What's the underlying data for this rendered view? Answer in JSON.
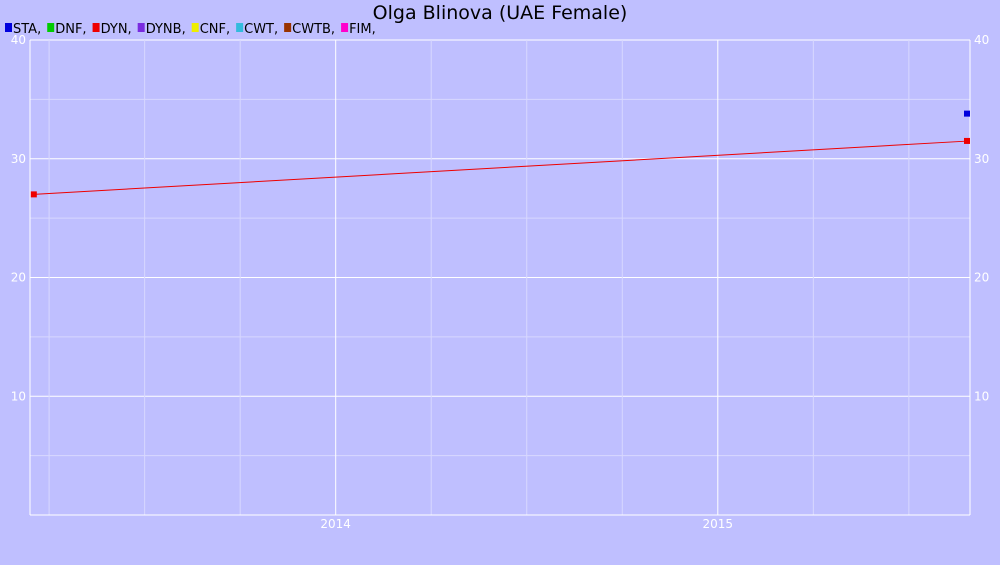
{
  "chart_data": {
    "type": "line",
    "title": "Olga Blinova (UAE Female)",
    "xlabel": "",
    "ylabel": "",
    "xlim": [
      2013.2,
      2015.66
    ],
    "ylim": [
      0,
      40
    ],
    "x_ticks": [
      2014,
      2015
    ],
    "x_tick_labels": [
      "2014",
      "2015"
    ],
    "y_ticks": [
      10,
      20,
      30,
      40
    ],
    "y_tick_labels": [
      "10",
      "20",
      "30",
      "40"
    ],
    "grid": true,
    "legend_position": "top-left",
    "legend": [
      {
        "label": "STA,",
        "color": "#0000dd"
      },
      {
        "label": "DNF,",
        "color": "#00cc00"
      },
      {
        "label": "DYN,",
        "color": "#ee0000"
      },
      {
        "label": "DYNB,",
        "color": "#7a2be0"
      },
      {
        "label": "CNF,",
        "color": "#eeee00"
      },
      {
        "label": "CWT,",
        "color": "#33bbdd"
      },
      {
        "label": "CWTB,",
        "color": "#993300"
      },
      {
        "label": "FIM,",
        "color": "#ff00cc"
      }
    ],
    "series": [
      {
        "name": "STA",
        "color": "#0000dd",
        "line": false,
        "points": [
          [
            2015.66,
            33.8
          ]
        ]
      },
      {
        "name": "DYN",
        "color": "#ee0000",
        "line": true,
        "points": [
          [
            2013.21,
            27.0
          ],
          [
            2015.66,
            31.5
          ]
        ]
      }
    ]
  }
}
